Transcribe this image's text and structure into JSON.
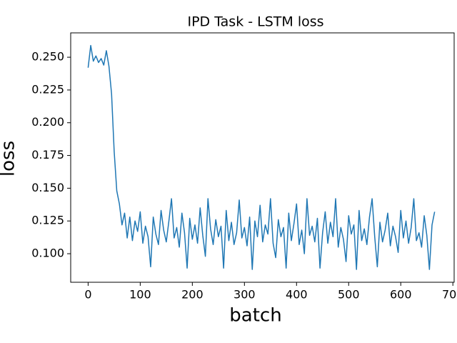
{
  "chart_data": {
    "type": "line",
    "title": "IPD Task - LSTM loss",
    "xlabel": "batch",
    "ylabel": "loss",
    "xlim": [
      -33.45,
      702.45
    ],
    "ylim": [
      0.0782,
      0.2686
    ],
    "xticks": [
      0,
      100,
      200,
      300,
      400,
      500,
      600,
      700
    ],
    "yticks": [
      {
        "value": 0.1,
        "label": "0.100"
      },
      {
        "value": 0.125,
        "label": "0.125"
      },
      {
        "value": 0.15,
        "label": "0.150"
      },
      {
        "value": 0.175,
        "label": "0.175"
      },
      {
        "value": 0.2,
        "label": "0.200"
      },
      {
        "value": 0.225,
        "label": "0.225"
      },
      {
        "value": 0.25,
        "label": "0.250"
      }
    ],
    "x": [
      0,
      5,
      10,
      15,
      20,
      25,
      30,
      35,
      40,
      45,
      50,
      55,
      60,
      65,
      70,
      75,
      80,
      85,
      90,
      95,
      100,
      105,
      110,
      115,
      120,
      125,
      130,
      135,
      140,
      145,
      150,
      155,
      160,
      165,
      170,
      175,
      180,
      185,
      190,
      195,
      200,
      205,
      210,
      215,
      220,
      225,
      230,
      235,
      240,
      245,
      250,
      255,
      260,
      265,
      270,
      275,
      280,
      285,
      290,
      295,
      300,
      305,
      310,
      315,
      320,
      325,
      330,
      335,
      340,
      345,
      350,
      355,
      360,
      365,
      370,
      375,
      380,
      385,
      390,
      395,
      400,
      405,
      410,
      415,
      420,
      425,
      430,
      435,
      440,
      445,
      450,
      455,
      460,
      465,
      470,
      475,
      480,
      485,
      490,
      495,
      500,
      505,
      510,
      515,
      520,
      525,
      530,
      535,
      540,
      545,
      550,
      555,
      560,
      565,
      570,
      575,
      580,
      585,
      590,
      595,
      600,
      605,
      610,
      615,
      620,
      625,
      630,
      635,
      640,
      645,
      650,
      655,
      660,
      665
    ],
    "series": [
      {
        "color": "#1f77b4",
        "values": [
          0.242,
          0.259,
          0.247,
          0.251,
          0.246,
          0.249,
          0.244,
          0.255,
          0.243,
          0.222,
          0.178,
          0.148,
          0.138,
          0.122,
          0.131,
          0.112,
          0.128,
          0.11,
          0.125,
          0.117,
          0.132,
          0.108,
          0.121,
          0.113,
          0.09,
          0.128,
          0.115,
          0.107,
          0.133,
          0.118,
          0.109,
          0.125,
          0.142,
          0.112,
          0.12,
          0.105,
          0.131,
          0.116,
          0.089,
          0.127,
          0.111,
          0.122,
          0.108,
          0.135,
          0.114,
          0.098,
          0.142,
          0.119,
          0.107,
          0.126,
          0.113,
          0.121,
          0.089,
          0.133,
          0.11,
          0.124,
          0.107,
          0.116,
          0.141,
          0.112,
          0.12,
          0.106,
          0.128,
          0.088,
          0.125,
          0.113,
          0.137,
          0.109,
          0.122,
          0.115,
          0.142,
          0.108,
          0.097,
          0.126,
          0.113,
          0.12,
          0.089,
          0.131,
          0.11,
          0.123,
          0.138,
          0.107,
          0.118,
          0.1,
          0.142,
          0.114,
          0.121,
          0.109,
          0.127,
          0.089,
          0.116,
          0.132,
          0.108,
          0.124,
          0.113,
          0.142,
          0.105,
          0.12,
          0.111,
          0.094,
          0.129,
          0.115,
          0.122,
          0.088,
          0.133,
          0.11,
          0.119,
          0.107,
          0.128,
          0.142,
          0.113,
          0.09,
          0.124,
          0.109,
          0.118,
          0.131,
          0.106,
          0.121,
          0.113,
          0.101,
          0.133,
          0.112,
          0.125,
          0.108,
          0.12,
          0.142,
          0.11,
          0.116,
          0.105,
          0.129,
          0.114,
          0.088,
          0.122,
          0.132
        ]
      }
    ]
  }
}
